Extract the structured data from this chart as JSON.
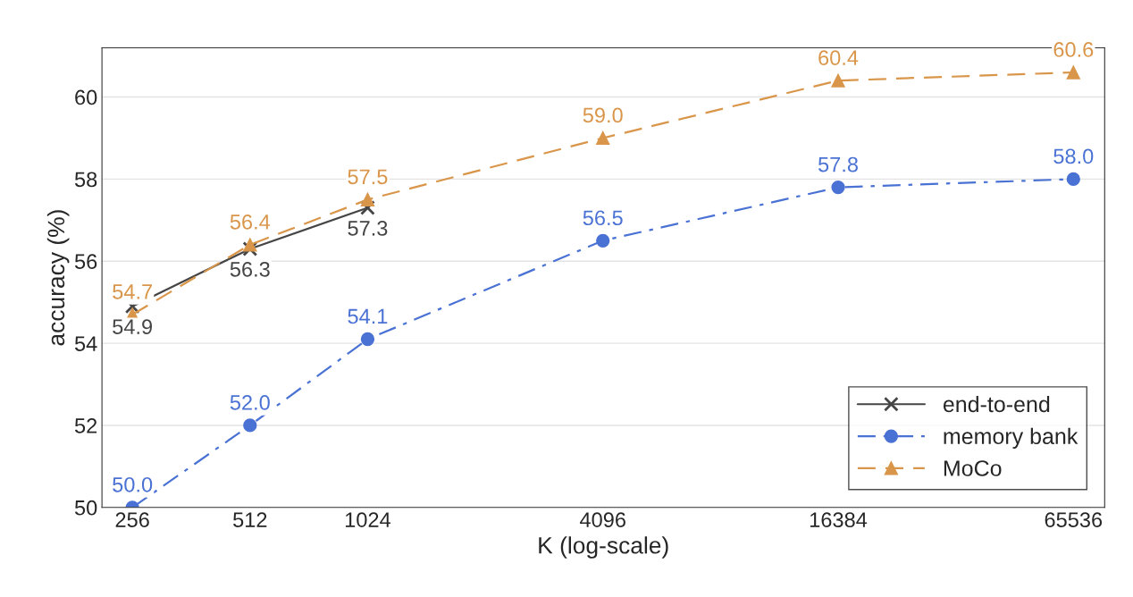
{
  "chart_data": {
    "type": "line",
    "xlabel": "K (log-scale)",
    "ylabel": "accuracy (%)",
    "log": "x",
    "x": [
      256,
      512,
      1024,
      4096,
      16384,
      65536
    ],
    "xlim": [
      214,
      78800
    ],
    "xticks": [
      256,
      512,
      1024,
      4096,
      16384,
      65536
    ],
    "ylim": [
      50,
      61.2
    ],
    "yticks": [
      50,
      52,
      54,
      56,
      58,
      60
    ],
    "grid": "y",
    "legend": "bottom right",
    "series": [
      {
        "name": "end-to-end",
        "color": "#454545",
        "marker": "cross",
        "line_style": "solid",
        "x": [
          256,
          512,
          1024
        ],
        "values": [
          54.9,
          56.3,
          57.3
        ],
        "value_labels": [
          "54.9",
          "56.3",
          "57.3"
        ]
      },
      {
        "name": "memory bank",
        "color": "#4a72d4",
        "marker": "circle",
        "line_style": "dashdot",
        "values": [
          50.0,
          52.0,
          54.1,
          56.5,
          57.8,
          58.0
        ],
        "value_labels": [
          "50.0",
          "52.0",
          "54.1",
          "56.5",
          "57.8",
          "58.0"
        ]
      },
      {
        "name": "MoCo",
        "color": "#d9964a",
        "marker": "triangle",
        "line_style": "dashed",
        "values": [
          54.7,
          56.4,
          57.5,
          59.0,
          60.4,
          60.6
        ],
        "value_labels": [
          "54.7",
          "56.4",
          "57.5",
          "59.0",
          "60.4",
          "60.6"
        ]
      }
    ]
  }
}
